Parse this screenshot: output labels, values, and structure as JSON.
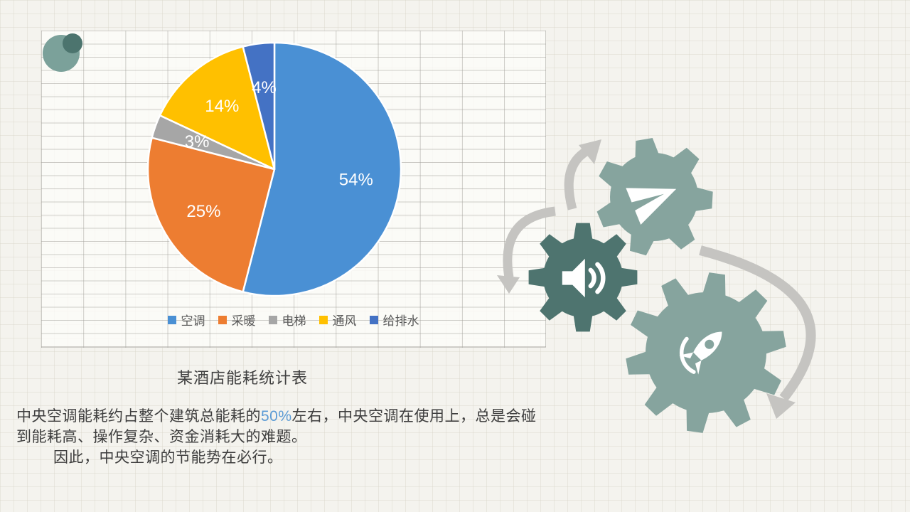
{
  "chart_data": {
    "type": "pie",
    "title": "某酒店能耗统计表",
    "categories": [
      "空调",
      "采暖",
      "电梯",
      "通风",
      "给排水"
    ],
    "values": [
      54,
      25,
      3,
      14,
      4
    ],
    "labels": [
      "54%",
      "25%",
      "3%",
      "14%",
      "4%"
    ],
    "colors": [
      "#4a90d4",
      "#ed7d31",
      "#a6a6a6",
      "#ffc000",
      "#4472c4"
    ],
    "start_angle_deg": 0,
    "direction": "clockwise",
    "legend_position": "bottom",
    "data_label_color": "#ffffff"
  },
  "paragraph": {
    "p_line1_pre": "中央空调能耗约占整个建筑总能耗的",
    "p_highlight": "50%",
    "p_line1_post": "左右，中央空调在使用上，总是会碰",
    "p_line2": "到能耗高、操作复杂、资金消耗大的难题。",
    "p_line3": "因此，中央空调的节能势在必行。",
    "highlight_color": "#5b9bd5",
    "text_color": "#3e3e3e"
  },
  "decor": {
    "gear_light_color": "#86a49e",
    "gear_dark_color": "#4e746f",
    "arrow_color": "#c5c4c1",
    "icon_color": "#ffffff",
    "logo_front_color": "#7ba19a",
    "logo_back_color": "#4c746e",
    "gear_icons": [
      "paper-plane-icon",
      "speaker-icon",
      "rocket-icon"
    ]
  }
}
